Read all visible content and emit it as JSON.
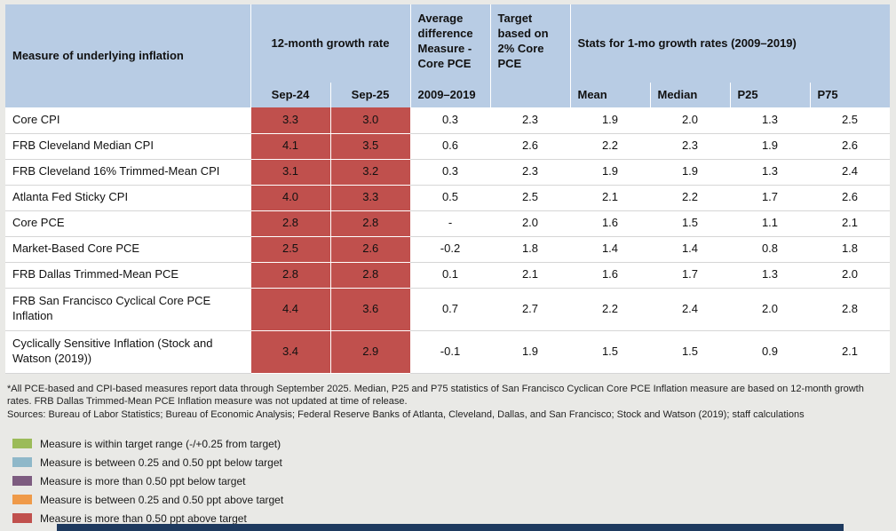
{
  "colors": {
    "header_bg": "#b8cce4",
    "above_target_red": "#c0504d",
    "page_bg": "#e9e9e6",
    "bottom_bar": "#1e3a5f"
  },
  "table": {
    "header": {
      "measure_label": "Measure of underlying inflation",
      "growth_group": "12-month growth rate",
      "avg_diff_group": "Average difference Measure - Core PCE",
      "target_group": "Target based on 2% Core PCE",
      "stats_group": "Stats for 1-mo growth rates (2009–2019)",
      "sub": {
        "sep24": "Sep-24",
        "sep25": "Sep-25",
        "avg_period": "2009–2019",
        "mean": "Mean",
        "median": "Median",
        "p25": "P25",
        "p75": "P75"
      }
    },
    "rows": [
      {
        "measure": "Core CPI",
        "values": [
          "3.3",
          "3.0",
          "0.3",
          "2.3",
          "1.9",
          "2.0",
          "1.3",
          "2.5"
        ]
      },
      {
        "measure": "FRB Cleveland Median CPI",
        "values": [
          "4.1",
          "3.5",
          "0.6",
          "2.6",
          "2.2",
          "2.3",
          "1.9",
          "2.6"
        ]
      },
      {
        "measure": "FRB Cleveland 16% Trimmed-Mean CPI",
        "values": [
          "3.1",
          "3.2",
          "0.3",
          "2.3",
          "1.9",
          "1.9",
          "1.3",
          "2.4"
        ]
      },
      {
        "measure": "Atlanta Fed Sticky CPI",
        "values": [
          "4.0",
          "3.3",
          "0.5",
          "2.5",
          "2.1",
          "2.2",
          "1.7",
          "2.6"
        ]
      },
      {
        "measure": "Core PCE",
        "values": [
          "2.8",
          "2.8",
          "-",
          "2.0",
          "1.6",
          "1.5",
          "1.1",
          "2.1"
        ]
      },
      {
        "measure": "Market-Based Core PCE",
        "values": [
          "2.5",
          "2.6",
          "-0.2",
          "1.8",
          "1.4",
          "1.4",
          "0.8",
          "1.8"
        ]
      },
      {
        "measure": "FRB Dallas Trimmed-Mean PCE",
        "values": [
          "2.8",
          "2.8",
          "0.1",
          "2.1",
          "1.6",
          "1.7",
          "1.3",
          "2.0"
        ]
      },
      {
        "measure": "FRB San Francisco Cyclical Core PCE Inflation",
        "values": [
          "4.4",
          "3.6",
          "0.7",
          "2.7",
          "2.2",
          "2.4",
          "2.0",
          "2.8"
        ]
      },
      {
        "measure": "Cyclically Sensitive Inflation (Stock and Watson (2019))",
        "values": [
          "3.4",
          "2.9",
          "-0.1",
          "1.9",
          "1.5",
          "1.5",
          "0.9",
          "2.1"
        ]
      }
    ]
  },
  "footnotes": {
    "note": "*All PCE-based and CPI-based measures report data through September 2025. Median, P25 and P75 statistics of San Francisco Cyclican Core PCE Inflation measure are based on 12-month growth rates. FRB Dallas Trimmed-Mean PCE Inflation measure was not updated at time of release.",
    "sources": "Sources: Bureau of Labor Statistics; Bureau of Economic Analysis; Federal Reserve Banks of Atlanta, Cleveland, Dallas, and San Francisco; Stock and Watson (2019); staff calculations"
  },
  "legend": [
    {
      "name": "within-target",
      "color": "#9bbb59",
      "label": "Measure is within target range (-/+0.25 from target)"
    },
    {
      "name": "below-target-025-050",
      "color": "#8fb8c9",
      "label": "Measure is between 0.25 and 0.50 ppt below target"
    },
    {
      "name": "below-target-more-050",
      "color": "#7d5c80",
      "label": "Measure is more than 0.50 ppt below target"
    },
    {
      "name": "above-target-025-050",
      "color": "#ef9a49",
      "label": "Measure is between 0.25 and 0.50 ppt above target"
    },
    {
      "name": "above-target-more-050",
      "color": "#c0504d",
      "label": "Measure is more than 0.50 ppt above target"
    }
  ],
  "chart_data": {
    "type": "table",
    "columns": [
      "Measure of underlying inflation",
      "12-month growth rate Sep-24",
      "12-month growth rate Sep-25",
      "Average difference Measure - Core PCE 2009–2019",
      "Target based on 2% Core PCE",
      "Mean (1-mo growth rates 2009–2019)",
      "Median (1-mo growth rates 2009–2019)",
      "P25 (1-mo growth rates 2009–2019)",
      "P75 (1-mo growth rates 2009–2019)"
    ],
    "rows": [
      [
        "Core CPI",
        3.3,
        3.0,
        0.3,
        2.3,
        1.9,
        2.0,
        1.3,
        2.5
      ],
      [
        "FRB Cleveland Median CPI",
        4.1,
        3.5,
        0.6,
        2.6,
        2.2,
        2.3,
        1.9,
        2.6
      ],
      [
        "FRB Cleveland 16% Trimmed-Mean CPI",
        3.1,
        3.2,
        0.3,
        2.3,
        1.9,
        1.9,
        1.3,
        2.4
      ],
      [
        "Atlanta Fed Sticky CPI",
        4.0,
        3.3,
        0.5,
        2.5,
        2.1,
        2.2,
        1.7,
        2.6
      ],
      [
        "Core PCE",
        2.8,
        2.8,
        null,
        2.0,
        1.6,
        1.5,
        1.1,
        2.1
      ],
      [
        "Market-Based Core PCE",
        2.5,
        2.6,
        -0.2,
        1.8,
        1.4,
        1.4,
        0.8,
        1.8
      ],
      [
        "FRB Dallas Trimmed-Mean PCE",
        2.8,
        2.8,
        0.1,
        2.1,
        1.6,
        1.7,
        1.3,
        2.0
      ],
      [
        "FRB San Francisco Cyclical Core PCE Inflation",
        4.4,
        3.6,
        0.7,
        2.7,
        2.2,
        2.4,
        2.0,
        2.8
      ],
      [
        "Cyclically Sensitive Inflation (Stock and Watson (2019))",
        3.4,
        2.9,
        -0.1,
        1.9,
        1.5,
        1.5,
        0.9,
        2.1
      ]
    ],
    "highlight_note": "Sep-24 and Sep-25 growth-rate cells are shaded red, meaning measure is more than 0.50 ppt above target"
  }
}
